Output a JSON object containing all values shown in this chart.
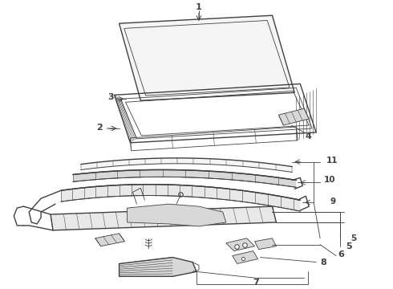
{
  "bg_color": "#ffffff",
  "line_color": "#404040",
  "fig_width": 4.9,
  "fig_height": 3.6,
  "dpi": 100,
  "glass_fill": "#f5f5f5",
  "frame_fill": "#e8e8e8",
  "part_fill": "#d8d8d8",
  "label_fs": 7.5,
  "lw_main": 1.0,
  "lw_thin": 0.6,
  "lw_label": 0.6
}
